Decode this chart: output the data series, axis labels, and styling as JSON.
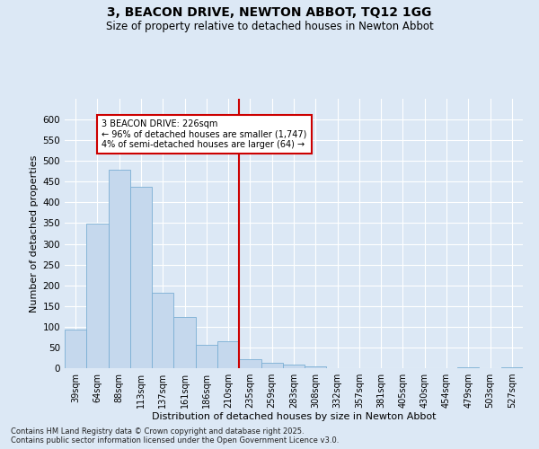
{
  "title1": "3, BEACON DRIVE, NEWTON ABBOT, TQ12 1GG",
  "title2": "Size of property relative to detached houses in Newton Abbot",
  "xlabel": "Distribution of detached houses by size in Newton Abbot",
  "ylabel": "Number of detached properties",
  "categories": [
    "39sqm",
    "64sqm",
    "88sqm",
    "113sqm",
    "137sqm",
    "161sqm",
    "186sqm",
    "210sqm",
    "235sqm",
    "259sqm",
    "283sqm",
    "308sqm",
    "332sqm",
    "357sqm",
    "381sqm",
    "405sqm",
    "430sqm",
    "454sqm",
    "479sqm",
    "503sqm",
    "527sqm"
  ],
  "values": [
    93,
    348,
    478,
    437,
    183,
    124,
    57,
    65,
    22,
    12,
    8,
    5,
    0,
    0,
    0,
    1,
    0,
    0,
    2,
    0,
    3
  ],
  "bar_color": "#c5d8ed",
  "bar_edge_color": "#7aafd4",
  "vline_color": "#cc0000",
  "annotation_text": "3 BEACON DRIVE: 226sqm\n← 96% of detached houses are smaller (1,747)\n4% of semi-detached houses are larger (64) →",
  "annotation_box_color": "#ffffff",
  "annotation_box_edge": "#cc0000",
  "background_color": "#dce8f5",
  "grid_color": "#ffffff",
  "footnote1": "Contains HM Land Registry data © Crown copyright and database right 2025.",
  "footnote2": "Contains public sector information licensed under the Open Government Licence v3.0.",
  "ylim": [
    0,
    650
  ],
  "yticks": [
    0,
    50,
    100,
    150,
    200,
    250,
    300,
    350,
    400,
    450,
    500,
    550,
    600
  ]
}
